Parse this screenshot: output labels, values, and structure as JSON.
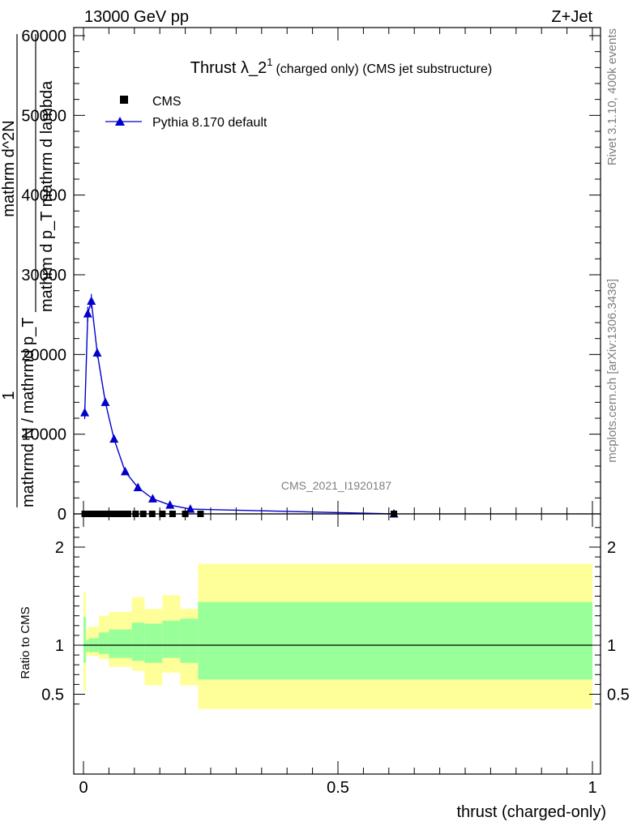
{
  "header": {
    "left": "13000 GeV pp",
    "right": "Z+Jet"
  },
  "side_labels": {
    "rivet": "Rivet 3.1.10,  400k events",
    "mcplots": "mcplots.cern.ch [arXiv:1306.3436]"
  },
  "watermark": "CMS_2021_I1920187",
  "chart_data": [
    {
      "type": "line",
      "title_main": "Thrust λ_2",
      "title_sup": "1",
      "title_small": "(charged only) (CMS jet substructure)",
      "ylabel_top": "1",
      "ylabel_bottom": "mathrmd N / mathrmd p_T",
      "ylabel2_top": "mathrm d^2N",
      "ylabel2_bottom": "mathrm d p_T mathrm d lambda",
      "xlim": [
        0,
        1
      ],
      "ylim": [
        0,
        60000
      ],
      "yticks": [
        0,
        10000,
        20000,
        30000,
        40000,
        50000,
        60000
      ],
      "ytick_labels": [
        "0",
        "10000",
        "20000",
        "30000",
        "40000",
        "50000",
        "60000"
      ],
      "legend_position": "top-left",
      "series": [
        {
          "name": "CMS",
          "marker": "square",
          "color": "#000000",
          "x": [
            0.0025,
            0.0075,
            0.0125,
            0.0175,
            0.0225,
            0.0275,
            0.0325,
            0.0375,
            0.0425,
            0.0475,
            0.055,
            0.065,
            0.075,
            0.0875,
            0.1025,
            0.1175,
            0.135,
            0.155,
            0.175,
            0.2,
            0.23,
            0.61
          ],
          "y": [
            0,
            0,
            0,
            0,
            0,
            0,
            0,
            0,
            0,
            0,
            0,
            0,
            0,
            0,
            0,
            0,
            0,
            0,
            0,
            0,
            0,
            0
          ]
        },
        {
          "name": "Pythia 8.170 default",
          "marker": "triangle",
          "color": "#0000cc",
          "x": [
            0.0025,
            0.0085,
            0.0155,
            0.027,
            0.043,
            0.06,
            0.082,
            0.107,
            0.136,
            0.17,
            0.21,
            0.61
          ],
          "y": [
            12700,
            25100,
            26700,
            20200,
            14000,
            9400,
            5300,
            3300,
            1900,
            1100,
            600,
            0
          ],
          "yerr": [
            800,
            900,
            900,
            600,
            400,
            300,
            200,
            150,
            100,
            80,
            60,
            30
          ]
        }
      ]
    },
    {
      "type": "area",
      "ylabel": "Ratio to CMS",
      "xlabel": "thrust (charged-only)",
      "xlim": [
        0,
        1
      ],
      "ylim": [
        0.35,
        2.3
      ],
      "yticks": [
        0.5,
        1,
        2
      ],
      "ytick_labels": [
        "0.5",
        "1",
        "2"
      ],
      "xticks": [
        0,
        0.5,
        1
      ],
      "xtick_labels": [
        "0",
        "0.5",
        "1"
      ],
      "reference_line": 1,
      "bands": {
        "edges": [
          0,
          0.005,
          0.01,
          0.02,
          0.03,
          0.05,
          0.07,
          0.095,
          0.12,
          0.155,
          0.19,
          0.225,
          1.0
        ],
        "green_lo": [
          0.82,
          0.93,
          0.93,
          0.93,
          0.91,
          0.87,
          0.87,
          0.84,
          0.82,
          0.87,
          0.82,
          0.65
        ],
        "green_hi": [
          1.29,
          1.05,
          1.07,
          1.07,
          1.13,
          1.16,
          1.16,
          1.23,
          1.22,
          1.25,
          1.27,
          1.44
        ],
        "yellow_lo": [
          0.53,
          0.89,
          0.89,
          0.89,
          0.86,
          0.78,
          0.78,
          0.74,
          0.59,
          0.72,
          0.59,
          0.35
        ],
        "yellow_hi": [
          1.54,
          1.15,
          1.19,
          1.19,
          1.3,
          1.34,
          1.34,
          1.49,
          1.37,
          1.51,
          1.37,
          1.83
        ],
        "green_color": "#99ff99",
        "yellow_color": "#ffff99"
      }
    }
  ]
}
